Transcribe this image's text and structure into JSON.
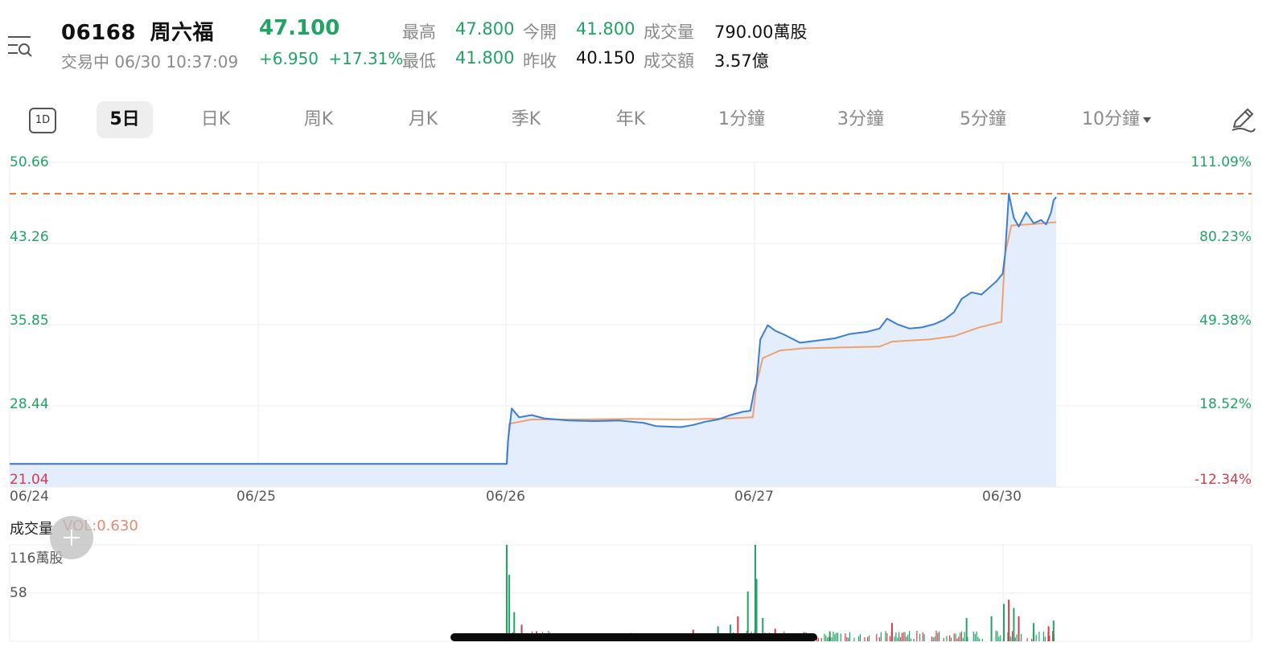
{
  "header": {
    "code": "06168",
    "name": "周六福",
    "price": "47.100",
    "status": "交易中 06/30 10:37:09",
    "change": "+6.950",
    "change_pct": "+17.31%"
  },
  "quote": {
    "high_label": "最高",
    "high": "47.800",
    "open_label": "今開",
    "open": "41.800",
    "volume_label": "成交量",
    "volume": "790.00萬股",
    "low_label": "最低",
    "low": "41.800",
    "prev_close_label": "昨收",
    "prev_close": "40.150",
    "turnover_label": "成交額",
    "turnover": "3.57億"
  },
  "tabs": {
    "one_day": "1D",
    "items": [
      "5日",
      "日K",
      "周K",
      "月K",
      "季K",
      "年K",
      "1分鐘",
      "3分鐘",
      "5分鐘",
      "10分鐘"
    ],
    "active": "5日"
  },
  "icons": {
    "menu": "menu-search-icon",
    "edit": "pencil-icon",
    "dropdown": "caret-down-icon",
    "add": "plus-icon"
  },
  "colors": {
    "up": "#21a366",
    "down": "#d23b4a",
    "price_line": "#3a7ed1",
    "avg_line": "#f0a070",
    "fill": "#e3edfb",
    "ref_line": "#f07a3c"
  },
  "chart_data": {
    "type": "line",
    "x_dates": [
      "06/24",
      "06/25",
      "06/26",
      "06/27",
      "06/30"
    ],
    "y_ticks_left": [
      "50.66",
      "43.26",
      "35.85",
      "28.44",
      "21.04"
    ],
    "y_ticks_right": [
      "111.09%",
      "80.23%",
      "49.38%",
      "18.52%",
      "-12.34%"
    ],
    "ylim": [
      21.04,
      50.66
    ],
    "reference_line": 47.8,
    "series": [
      {
        "values": [
          [
            0,
            23.15
          ],
          [
            1,
            23.15
          ],
          [
            2,
            23.15
          ],
          [
            2.005,
            25.2
          ],
          [
            2.02,
            28.2
          ],
          [
            2.05,
            27.4
          ],
          [
            2.1,
            27.6
          ],
          [
            2.15,
            27.3
          ],
          [
            2.25,
            27.1
          ],
          [
            2.35,
            27.05
          ],
          [
            2.45,
            27.1
          ],
          [
            2.55,
            26.9
          ],
          [
            2.6,
            26.6
          ],
          [
            2.7,
            26.5
          ],
          [
            2.75,
            26.7
          ],
          [
            2.8,
            27.0
          ],
          [
            2.85,
            27.2
          ],
          [
            2.9,
            27.6
          ],
          [
            2.95,
            27.9
          ],
          [
            2.98,
            28.0
          ],
          [
            2.995,
            29.8
          ],
          [
            3.005,
            30.5
          ],
          [
            3.02,
            34.5
          ],
          [
            3.05,
            35.8
          ],
          [
            3.08,
            35.3
          ],
          [
            3.12,
            34.9
          ],
          [
            3.18,
            34.2
          ],
          [
            3.25,
            34.4
          ],
          [
            3.32,
            34.6
          ],
          [
            3.38,
            35.0
          ],
          [
            3.45,
            35.2
          ],
          [
            3.5,
            35.5
          ],
          [
            3.53,
            36.4
          ],
          [
            3.57,
            35.9
          ],
          [
            3.62,
            35.5
          ],
          [
            3.67,
            35.6
          ],
          [
            3.72,
            35.9
          ],
          [
            3.76,
            36.3
          ],
          [
            3.8,
            37.0
          ],
          [
            3.83,
            38.2
          ],
          [
            3.87,
            38.8
          ],
          [
            3.91,
            38.6
          ],
          [
            3.94,
            39.2
          ],
          [
            3.97,
            39.8
          ],
          [
            3.995,
            40.5
          ],
          [
            4.005,
            42.2
          ],
          [
            4.02,
            47.8
          ],
          [
            4.04,
            45.6
          ],
          [
            4.06,
            44.8
          ],
          [
            4.09,
            46.1
          ],
          [
            4.12,
            45.1
          ],
          [
            4.15,
            45.4
          ],
          [
            4.17,
            45.0
          ],
          [
            4.19,
            46.1
          ],
          [
            4.2,
            47.2
          ],
          [
            4.2105,
            47.5
          ]
        ]
      },
      {
        "values": [
          [
            0,
            23.15
          ],
          [
            2,
            23.15
          ],
          [
            2.01,
            26.8
          ],
          [
            2.1,
            27.2
          ],
          [
            2.3,
            27.2
          ],
          [
            2.5,
            27.25
          ],
          [
            2.7,
            27.2
          ],
          [
            2.9,
            27.3
          ],
          [
            2.99,
            27.4
          ],
          [
            3.005,
            30.5
          ],
          [
            3.03,
            32.8
          ],
          [
            3.1,
            33.5
          ],
          [
            3.2,
            33.7
          ],
          [
            3.4,
            33.8
          ],
          [
            3.5,
            33.85
          ],
          [
            3.55,
            34.3
          ],
          [
            3.7,
            34.5
          ],
          [
            3.8,
            34.8
          ],
          [
            3.9,
            35.6
          ],
          [
            3.99,
            36.1
          ],
          [
            4.005,
            42.3
          ],
          [
            4.03,
            44.9
          ],
          [
            4.1,
            45.0
          ],
          [
            4.2105,
            45.2
          ]
        ]
      }
    ],
    "volume": {
      "title": "成交量",
      "label": "VOL:0.630",
      "y_ticks": [
        "116萬股",
        "58"
      ],
      "ymax": 116,
      "spikes": [
        [
          2.0,
          116,
          "up"
        ],
        [
          2.01,
          80,
          "up"
        ],
        [
          2.03,
          35,
          "up"
        ],
        [
          2.06,
          20,
          "down"
        ],
        [
          2.12,
          12,
          "down"
        ],
        [
          2.5,
          10,
          "down"
        ],
        [
          2.75,
          14,
          "down"
        ],
        [
          2.85,
          18,
          "up"
        ],
        [
          2.9,
          20,
          "up"
        ],
        [
          2.93,
          30,
          "down"
        ],
        [
          2.97,
          60,
          "up"
        ],
        [
          3.0,
          116,
          "up"
        ],
        [
          3.005,
          75,
          "up"
        ],
        [
          3.03,
          28,
          "up"
        ],
        [
          3.08,
          15,
          "down"
        ],
        [
          3.3,
          12,
          "up"
        ],
        [
          3.55,
          22,
          "down"
        ],
        [
          3.85,
          28,
          "up"
        ],
        [
          3.95,
          30,
          "up"
        ],
        [
          4.0,
          45,
          "up"
        ],
        [
          4.02,
          50,
          "down"
        ],
        [
          4.04,
          40,
          "up"
        ],
        [
          4.06,
          30,
          "down"
        ],
        [
          4.12,
          22,
          "up"
        ],
        [
          4.18,
          18,
          "down"
        ],
        [
          4.2,
          25,
          "up"
        ]
      ]
    }
  }
}
